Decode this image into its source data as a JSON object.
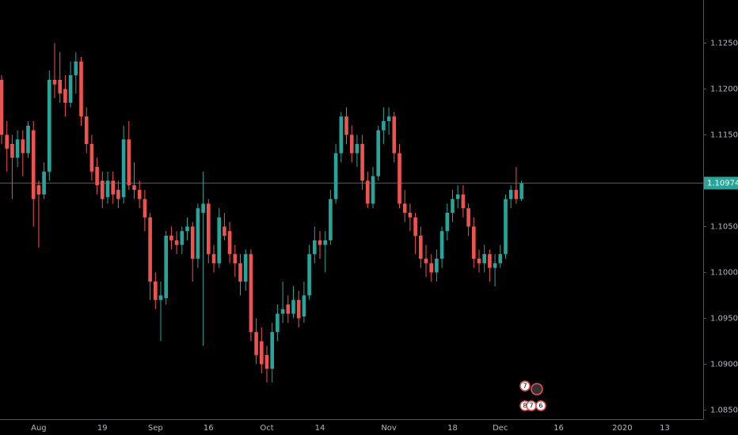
{
  "chart_data": {
    "type": "candlestick",
    "categories": [
      null,
      null,
      null,
      null,
      null,
      null,
      null,
      "Aug",
      null,
      null,
      null,
      null,
      null,
      null,
      null,
      null,
      null,
      null,
      null,
      "19",
      null,
      null,
      null,
      null,
      null,
      null,
      null,
      null,
      null,
      "Sep",
      null,
      null,
      null,
      null,
      null,
      null,
      null,
      null,
      null,
      "16",
      null,
      null,
      null,
      null,
      null,
      null,
      null,
      null,
      null,
      null,
      "Oct",
      null,
      null,
      null,
      null,
      null,
      null,
      null,
      null,
      null,
      "14",
      null,
      null,
      null,
      null,
      null,
      null,
      null,
      null,
      null,
      null,
      null,
      null,
      "Nov",
      null,
      null,
      null,
      null,
      null,
      null,
      null,
      null,
      null,
      null,
      null,
      "18",
      null,
      null,
      null,
      null,
      null,
      null,
      null,
      null,
      "Dec",
      null,
      null,
      null,
      null,
      null,
      null,
      null,
      null,
      null,
      null,
      "16",
      null,
      null,
      null,
      null,
      null,
      null,
      null,
      null,
      null,
      null,
      null,
      "2020",
      null,
      null,
      null,
      null,
      null,
      null,
      null,
      "13"
    ],
    "open": [
      1.121,
      1.115,
      1.114,
      1.1125,
      1.1145,
      1.113,
      1.1155,
      1.1095,
      1.1085,
      1.111,
      1.121,
      1.121,
      1.12,
      1.1185,
      1.1215,
      1.123,
      1.117,
      1.114,
      1.1115,
      1.11,
      1.1082,
      1.11,
      1.109,
      1.1082,
      1.1145,
      1.1095,
      1.109,
      1.108,
      1.106,
      1.099,
      1.097,
      1.0972,
      1.104,
      1.1035,
      1.103,
      1.1045,
      1.105,
      1.1015,
      1.1065,
      1.1075,
      1.102,
      1.101,
      1.105,
      1.1045,
      1.102,
      1.101,
      1.099,
      1.102,
      1.0935,
      1.0925,
      1.091,
      1.0895,
      1.0935,
      1.0955,
      1.0965,
      1.0955,
      1.097,
      1.0952,
      1.0975,
      1.102,
      1.1035,
      1.103,
      1.1035,
      1.108,
      1.113,
      1.117,
      1.115,
      1.113,
      1.114,
      1.11,
      1.1075,
      1.1105,
      1.1155,
      1.1165,
      1.117,
      1.113,
      1.1075,
      1.1065,
      1.106,
      1.104,
      1.1015,
      1.101,
      1.1,
      1.1015,
      1.1045,
      1.1065,
      1.108,
      1.1085,
      1.107,
      1.105,
      1.1015,
      1.101,
      1.102,
      1.1005,
      1.101,
      1.102,
      1.108,
      1.109,
      1.108,
      null,
      null,
      null,
      null,
      null,
      null,
      null,
      null,
      null,
      null,
      null,
      null,
      null,
      null,
      null,
      null,
      null,
      null,
      null,
      null,
      null,
      null,
      null,
      null,
      null,
      null,
      null
    ],
    "high": [
      1.1215,
      1.1165,
      1.115,
      1.1155,
      1.1155,
      1.1165,
      1.1165,
      1.11,
      1.112,
      1.122,
      1.125,
      1.124,
      1.1215,
      1.123,
      1.124,
      1.1235,
      1.118,
      1.115,
      1.1125,
      1.111,
      1.111,
      1.111,
      1.11,
      1.116,
      1.1165,
      1.112,
      1.11,
      1.109,
      1.1065,
      1.1,
      1.099,
      1.1045,
      1.105,
      1.1045,
      1.105,
      1.106,
      1.1055,
      1.1075,
      1.111,
      1.108,
      1.103,
      1.107,
      1.1065,
      1.1055,
      1.103,
      1.102,
      1.1025,
      1.1025,
      1.095,
      1.094,
      1.092,
      1.0945,
      1.0965,
      1.099,
      1.0975,
      1.0985,
      1.098,
      1.099,
      1.103,
      1.105,
      1.1045,
      1.1045,
      1.109,
      1.114,
      1.1175,
      1.118,
      1.116,
      1.115,
      1.115,
      1.111,
      1.1115,
      1.116,
      1.118,
      1.118,
      1.1175,
      1.114,
      1.109,
      1.1075,
      1.1065,
      1.105,
      1.103,
      1.102,
      1.1025,
      1.105,
      1.1075,
      1.109,
      1.1095,
      1.1095,
      1.1075,
      1.106,
      1.1025,
      1.103,
      1.1025,
      1.102,
      1.103,
      1.1085,
      1.1095,
      1.1115,
      1.11,
      null,
      null,
      null,
      null,
      null,
      null,
      null,
      null,
      null,
      null,
      null,
      null,
      null,
      null,
      null,
      null,
      null,
      null,
      null,
      null,
      null,
      null,
      null,
      null,
      null,
      null,
      null
    ],
    "low": [
      1.114,
      1.111,
      1.108,
      1.1115,
      1.1105,
      1.1125,
      1.105,
      1.1027,
      1.108,
      1.11,
      1.119,
      1.1185,
      1.117,
      1.118,
      1.1195,
      1.116,
      1.113,
      1.11,
      1.1085,
      1.107,
      1.1075,
      1.1075,
      1.107,
      1.1075,
      1.109,
      1.108,
      1.107,
      1.1045,
      1.097,
      1.096,
      1.0925,
      1.0965,
      1.1025,
      1.102,
      1.102,
      1.1035,
      1.099,
      1.1005,
      1.092,
      1.101,
      1.1,
      1.1005,
      1.1035,
      1.101,
      1.0995,
      1.0975,
      1.098,
      1.0925,
      1.09,
      1.089,
      1.088,
      1.088,
      1.0925,
      1.0945,
      1.0945,
      1.095,
      1.094,
      1.0945,
      1.097,
      1.101,
      1.1015,
      1.1,
      1.103,
      1.1075,
      1.112,
      1.114,
      1.112,
      1.1115,
      1.109,
      1.107,
      1.107,
      1.11,
      1.114,
      1.115,
      1.112,
      1.107,
      1.1055,
      1.1045,
      1.102,
      1.1005,
      1.0995,
      1.099,
      1.099,
      1.1005,
      1.1035,
      1.1055,
      1.107,
      1.106,
      1.104,
      1.1005,
      1.1,
      1.1,
      1.099,
      1.0985,
      1.1005,
      1.1015,
      1.107,
      1.1075,
      1.1078,
      null,
      null,
      null,
      null,
      null,
      null,
      null,
      null,
      null,
      null,
      null,
      null,
      null,
      null,
      null,
      null,
      null,
      null,
      null,
      null,
      null,
      null,
      null,
      null,
      null,
      null,
      null
    ],
    "close": [
      1.115,
      1.1135,
      1.1125,
      1.1145,
      1.113,
      1.116,
      1.108,
      1.1085,
      1.111,
      1.121,
      1.1205,
      1.1195,
      1.1185,
      1.1215,
      1.123,
      1.117,
      1.114,
      1.111,
      1.1095,
      1.108,
      1.11,
      1.1085,
      1.108,
      1.1145,
      1.1095,
      1.109,
      1.108,
      1.106,
      1.099,
      1.097,
      1.0975,
      1.104,
      1.1035,
      1.103,
      1.1045,
      1.105,
      1.1015,
      1.107,
      1.1075,
      1.102,
      1.101,
      1.106,
      1.104,
      1.102,
      1.101,
      1.099,
      1.102,
      1.0935,
      1.091,
      1.09,
      1.0895,
      1.0935,
      1.0955,
      1.096,
      1.0955,
      1.097,
      1.095,
      1.0975,
      1.102,
      1.1035,
      1.103,
      1.1035,
      1.108,
      1.113,
      1.117,
      1.115,
      1.113,
      1.114,
      1.11,
      1.1075,
      1.1105,
      1.1155,
      1.1165,
      1.117,
      1.113,
      1.1075,
      1.1065,
      1.106,
      1.104,
      1.1015,
      1.101,
      1.1,
      1.1015,
      1.1045,
      1.1065,
      1.108,
      1.1085,
      1.107,
      1.105,
      1.1015,
      1.101,
      1.102,
      1.1005,
      1.101,
      1.102,
      1.108,
      1.109,
      1.108,
      1.1097,
      null,
      null,
      null,
      null,
      null,
      null,
      null,
      null,
      null,
      null,
      null,
      null,
      null,
      null,
      null,
      null,
      null,
      null,
      null,
      null,
      null,
      null,
      null,
      null,
      null,
      null,
      null
    ],
    "up_color": "#26a69a",
    "down_color": "#ef5350",
    "ylim": [
      1.084,
      1.1297
    ],
    "yticks": [
      {
        "value": 1.085,
        "label": "1.08500"
      },
      {
        "value": 1.09,
        "label": "1.09000"
      },
      {
        "value": 1.095,
        "label": "1.09500"
      },
      {
        "value": 1.1,
        "label": "1.10000"
      },
      {
        "value": 1.105,
        "label": "1.10500"
      },
      {
        "value": 1.11,
        "label": "1.11000"
      },
      {
        "value": 1.115,
        "label": "1.11500"
      },
      {
        "value": 1.12,
        "label": "1.12000"
      },
      {
        "value": 1.125,
        "label": "1.12500"
      }
    ],
    "last_price": 1.10974,
    "event_labels": [
      "7",
      "8",
      "7",
      "6"
    ]
  }
}
